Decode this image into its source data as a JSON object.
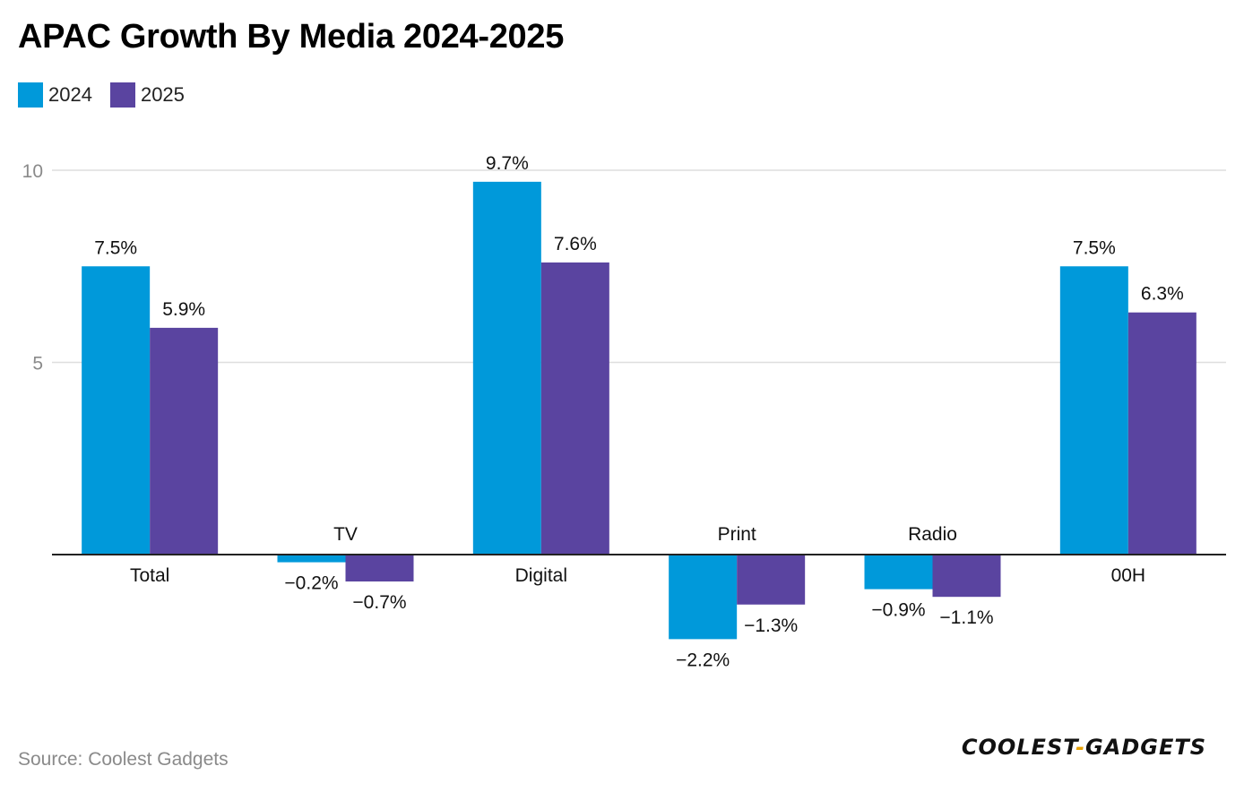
{
  "title": "APAC Growth By Media 2024-2025",
  "legend": [
    {
      "label": "2024",
      "color": "#0099da"
    },
    {
      "label": "2025",
      "color": "#5a44a0"
    }
  ],
  "source": "Source: Coolest Gadgets",
  "brand": {
    "left": "COOLEST",
    "dash": "-",
    "right": "GADGETS"
  },
  "chart_data": {
    "type": "bar",
    "title": "APAC Growth By Media 2024-2025",
    "categories": [
      "Total",
      "TV",
      "Digital",
      "Print",
      "Radio",
      "00H"
    ],
    "series": [
      {
        "name": "2024",
        "color": "#0099da",
        "values": [
          7.5,
          -0.2,
          9.7,
          -2.2,
          -0.9,
          7.5
        ],
        "labels": [
          "7.5%",
          "−0.2%",
          "9.7%",
          "−2.2%",
          "−0.9%",
          "7.5%"
        ]
      },
      {
        "name": "2025",
        "color": "#5a44a0",
        "values": [
          5.9,
          -0.7,
          7.6,
          -1.3,
          -1.1,
          6.3
        ],
        "labels": [
          "5.9%",
          "−0.7%",
          "7.6%",
          "−1.3%",
          "−1.1%",
          "6.3%"
        ]
      }
    ],
    "yticks": [
      5,
      10
    ],
    "ytick_labels": [
      "5",
      "10"
    ],
    "ylim": [
      -3,
      10
    ],
    "grid": true,
    "xlabel": "",
    "ylabel": "",
    "legend_position": "top-left"
  }
}
